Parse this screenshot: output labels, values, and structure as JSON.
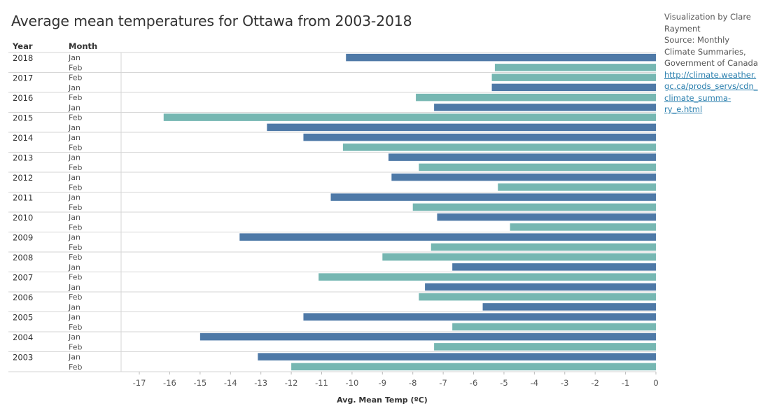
{
  "title": "Average mean temperatures for Ottawa from 2003-2018",
  "credits": {
    "byline": "Visualization by Clare Rayment",
    "source": "Source: Monthly Climate Summaries, Government of Canada",
    "link_lines": [
      "http://climate.weather.",
      "gc.ca/prods_servs/cdn_",
      "climate_summa-",
      "ry_e.html"
    ]
  },
  "chart_data": {
    "type": "bar",
    "orientation": "horizontal",
    "title": "Average mean temperatures for Ottawa from 2003-2018",
    "row_headers": {
      "year": "Year",
      "month": "Month"
    },
    "xlabel": "Avg. Mean Temp (ºC)",
    "xlim": [
      -17.6,
      0
    ],
    "x_ticks": [
      -17,
      -16,
      -15,
      -14,
      -13,
      -12,
      -11,
      -10,
      -9,
      -8,
      -7,
      -6,
      -5,
      -4,
      -3,
      -2,
      -1,
      0
    ],
    "colors": {
      "Jan": "#4e79a7",
      "Feb": "#76b7b2"
    },
    "grid": false,
    "legend": "none",
    "groups": [
      {
        "year": "2018",
        "rows": [
          {
            "month": "Jan",
            "value": -10.2
          },
          {
            "month": "Feb",
            "value": -5.3
          }
        ]
      },
      {
        "year": "2017",
        "rows": [
          {
            "month": "Feb",
            "value": -5.4
          },
          {
            "month": "Jan",
            "value": -5.4
          }
        ]
      },
      {
        "year": "2016",
        "rows": [
          {
            "month": "Feb",
            "value": -7.9
          },
          {
            "month": "Jan",
            "value": -7.3
          }
        ]
      },
      {
        "year": "2015",
        "rows": [
          {
            "month": "Feb",
            "value": -16.2
          },
          {
            "month": "Jan",
            "value": -12.8
          }
        ]
      },
      {
        "year": "2014",
        "rows": [
          {
            "month": "Jan",
            "value": -11.6
          },
          {
            "month": "Feb",
            "value": -10.3
          }
        ]
      },
      {
        "year": "2013",
        "rows": [
          {
            "month": "Jan",
            "value": -8.8
          },
          {
            "month": "Feb",
            "value": -7.8
          }
        ]
      },
      {
        "year": "2012",
        "rows": [
          {
            "month": "Jan",
            "value": -8.7
          },
          {
            "month": "Feb",
            "value": -5.2
          }
        ]
      },
      {
        "year": "2011",
        "rows": [
          {
            "month": "Jan",
            "value": -10.7
          },
          {
            "month": "Feb",
            "value": -8.0
          }
        ]
      },
      {
        "year": "2010",
        "rows": [
          {
            "month": "Jan",
            "value": -7.2
          },
          {
            "month": "Feb",
            "value": -4.8
          }
        ]
      },
      {
        "year": "2009",
        "rows": [
          {
            "month": "Jan",
            "value": -13.7
          },
          {
            "month": "Feb",
            "value": -7.4
          }
        ]
      },
      {
        "year": "2008",
        "rows": [
          {
            "month": "Feb",
            "value": -9.0
          },
          {
            "month": "Jan",
            "value": -6.7
          }
        ]
      },
      {
        "year": "2007",
        "rows": [
          {
            "month": "Feb",
            "value": -11.1
          },
          {
            "month": "Jan",
            "value": -7.6
          }
        ]
      },
      {
        "year": "2006",
        "rows": [
          {
            "month": "Feb",
            "value": -7.8
          },
          {
            "month": "Jan",
            "value": -5.7
          }
        ]
      },
      {
        "year": "2005",
        "rows": [
          {
            "month": "Jan",
            "value": -11.6
          },
          {
            "month": "Feb",
            "value": -6.7
          }
        ]
      },
      {
        "year": "2004",
        "rows": [
          {
            "month": "Jan",
            "value": -15.0
          },
          {
            "month": "Feb",
            "value": -7.3
          }
        ]
      },
      {
        "year": "2003",
        "rows": [
          {
            "month": "Jan",
            "value": -13.1
          },
          {
            "month": "Feb",
            "value": -12.0
          }
        ]
      }
    ]
  }
}
